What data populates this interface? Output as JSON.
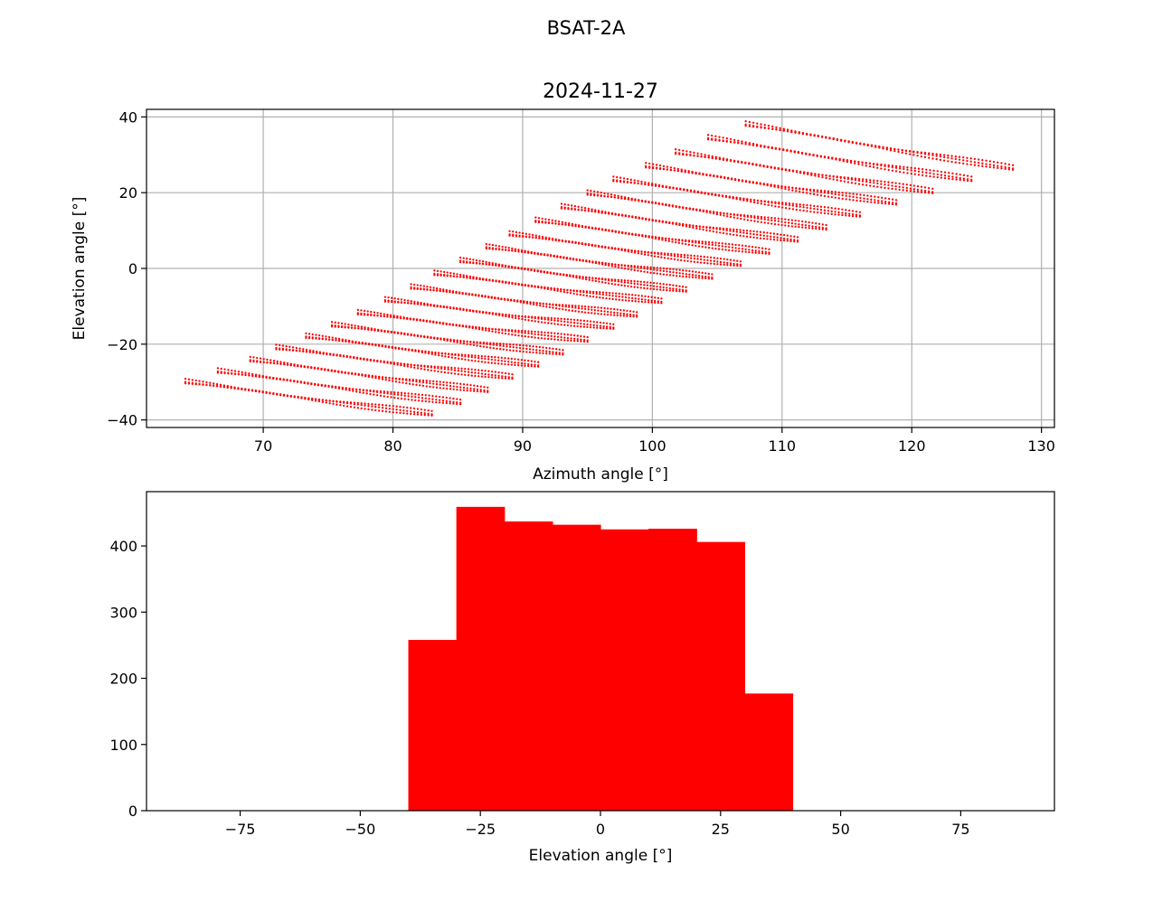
{
  "figure": {
    "suptitle": "BSAT-2A"
  },
  "colors": {
    "marker": "#ff0000",
    "grid": "#b0b0b0",
    "axis": "#000000"
  },
  "chart_data": [
    {
      "type": "scatter",
      "title": "2024-11-27",
      "xlabel": "Azimuth angle [°]",
      "ylabel": "Elevation angle [°]",
      "xlim": [
        61,
        131
      ],
      "ylim": [
        -42,
        42
      ],
      "xticks": [
        70,
        80,
        90,
        100,
        110,
        120,
        130
      ],
      "yticks": [
        -40,
        -20,
        0,
        20,
        40
      ],
      "ytick_labels": [
        "−40",
        "−20",
        "0",
        "20",
        "40"
      ],
      "grid": true,
      "marker": "dot",
      "tracks": [
        {
          "start": [
            64.0,
            -30.0
          ],
          "end": [
            83.0,
            -38.5
          ]
        },
        {
          "start": [
            66.5,
            -27.2
          ],
          "end": [
            85.2,
            -35.5
          ]
        },
        {
          "start": [
            69.0,
            -24.2
          ],
          "end": [
            87.3,
            -32.3
          ]
        },
        {
          "start": [
            71.0,
            -21.0
          ],
          "end": [
            89.2,
            -28.8
          ]
        },
        {
          "start": [
            73.3,
            -18.0
          ],
          "end": [
            91.2,
            -25.6
          ]
        },
        {
          "start": [
            75.3,
            -15.0
          ],
          "end": [
            93.1,
            -22.4
          ]
        },
        {
          "start": [
            77.3,
            -11.8
          ],
          "end": [
            95.0,
            -19.0
          ]
        },
        {
          "start": [
            79.4,
            -8.4
          ],
          "end": [
            97.0,
            -15.6
          ]
        },
        {
          "start": [
            81.4,
            -5.0
          ],
          "end": [
            98.8,
            -12.4
          ]
        },
        {
          "start": [
            83.2,
            -1.4
          ],
          "end": [
            100.7,
            -8.8
          ]
        },
        {
          "start": [
            85.2,
            2.0
          ],
          "end": [
            102.6,
            -5.8
          ]
        },
        {
          "start": [
            87.2,
            5.6
          ],
          "end": [
            104.6,
            -2.4
          ]
        },
        {
          "start": [
            89.0,
            9.0
          ],
          "end": [
            106.8,
            1.0
          ]
        },
        {
          "start": [
            91.0,
            12.6
          ],
          "end": [
            109.0,
            4.2
          ]
        },
        {
          "start": [
            93.0,
            16.2
          ],
          "end": [
            111.2,
            7.4
          ]
        },
        {
          "start": [
            95.0,
            19.8
          ],
          "end": [
            113.4,
            10.6
          ]
        },
        {
          "start": [
            97.0,
            23.4
          ],
          "end": [
            116.0,
            14.0
          ]
        },
        {
          "start": [
            99.5,
            27.0
          ],
          "end": [
            118.8,
            17.2
          ]
        },
        {
          "start": [
            101.8,
            30.6
          ],
          "end": [
            121.6,
            20.2
          ]
        },
        {
          "start": [
            104.3,
            34.4
          ],
          "end": [
            124.6,
            23.4
          ]
        },
        {
          "start": [
            107.2,
            38.0
          ],
          "end": [
            127.8,
            26.4
          ]
        }
      ]
    },
    {
      "type": "bar",
      "subtype": "histogram",
      "xlabel": "Elevation angle [°]",
      "xlim": [
        -94.5,
        94.5
      ],
      "ylim": [
        0,
        482
      ],
      "xticks": [
        -75,
        -50,
        -25,
        0,
        25,
        50,
        75
      ],
      "xtick_labels": [
        "−75",
        "−50",
        "−25",
        "0",
        "25",
        "50",
        "75"
      ],
      "yticks": [
        0,
        100,
        200,
        300,
        400
      ],
      "grid": false,
      "bins": [
        {
          "from": -40,
          "to": -30,
          "value": 258
        },
        {
          "from": -30,
          "to": -20,
          "value": 459
        },
        {
          "from": -20,
          "to": -10,
          "value": 437
        },
        {
          "from": -10,
          "to": 0,
          "value": 432
        },
        {
          "from": 0,
          "to": 10,
          "value": 425
        },
        {
          "from": 10,
          "to": 20,
          "value": 426
        },
        {
          "from": 20,
          "to": 30,
          "value": 406
        },
        {
          "from": 30,
          "to": 40,
          "value": 177
        }
      ]
    }
  ]
}
